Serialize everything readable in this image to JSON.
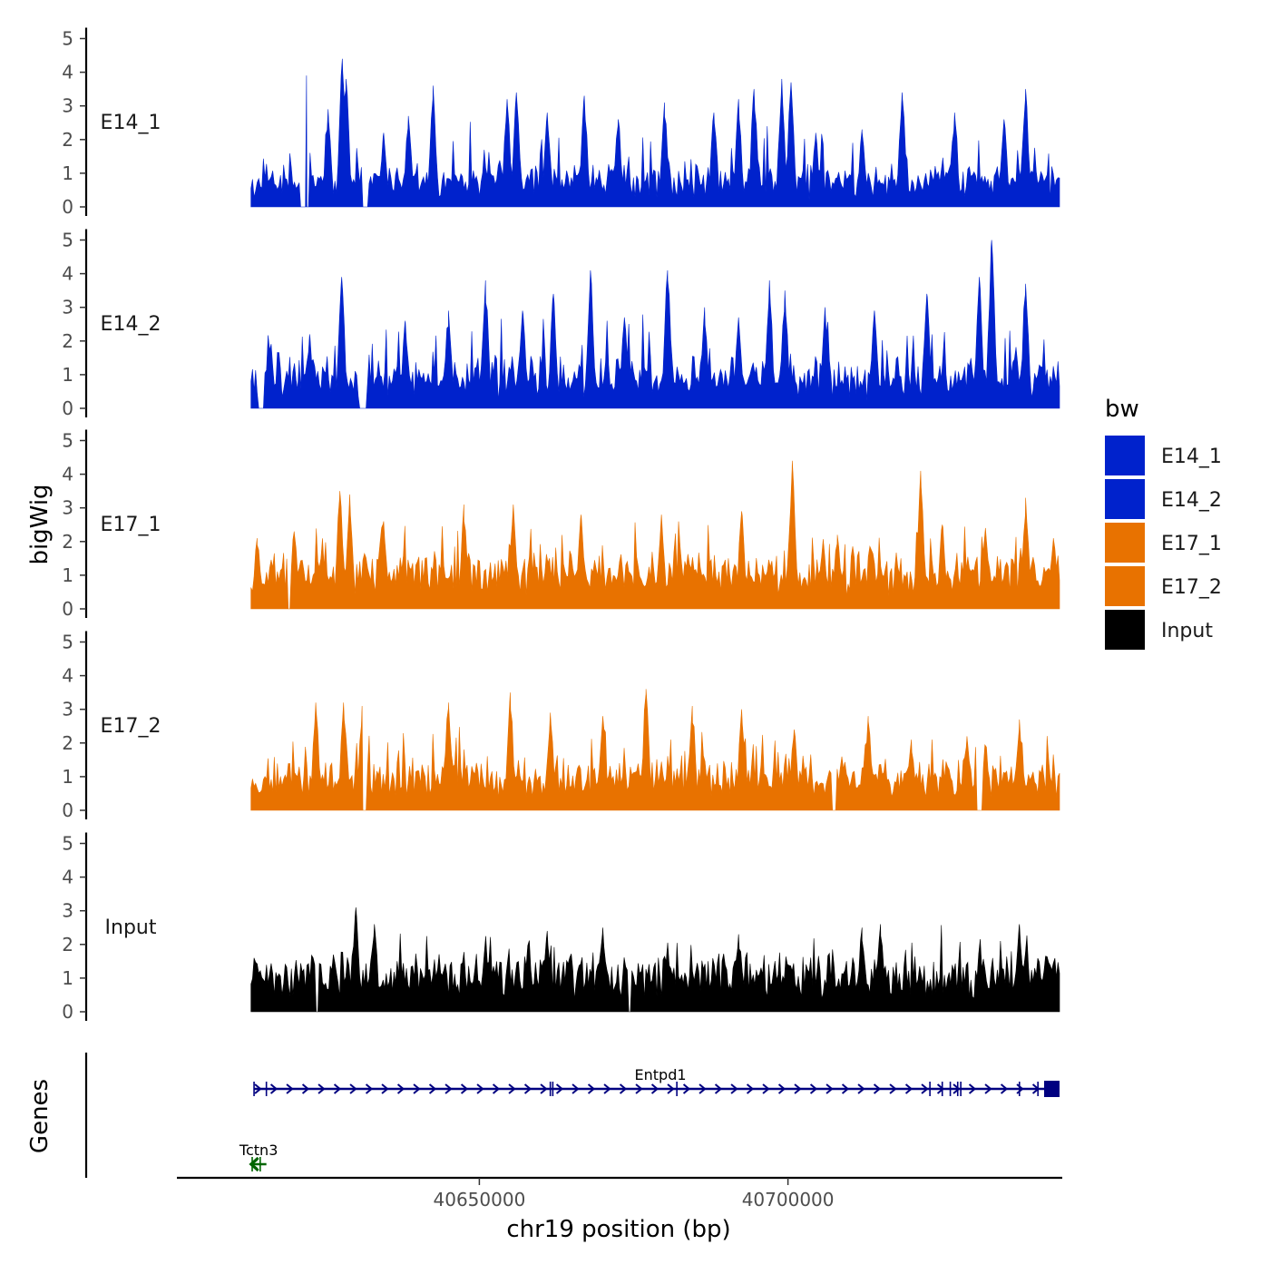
{
  "chart_data": {
    "type": "area",
    "chromosome": "chr19",
    "xlabel": "chr19 position (bp)",
    "ylabel_tracks": "bigWig",
    "ylabel_genes": "Genes",
    "xlim": [
      40601000,
      40744000
    ],
    "data_range": [
      40613000,
      40744000
    ],
    "x_ticks": [
      40650000,
      40700000
    ],
    "x_tick_labels": [
      "40650000",
      "40700000"
    ],
    "ylim": [
      0,
      5
    ],
    "y_ticks": [
      0,
      1,
      2,
      3,
      4,
      5
    ],
    "y_tick_labels": [
      "0",
      "1",
      "2",
      "3",
      "4",
      "5"
    ],
    "legend": {
      "title": "bw",
      "entries": [
        {
          "label": "E14_1",
          "color": "#0022CC"
        },
        {
          "label": "E14_2",
          "color": "#0022CC"
        },
        {
          "label": "E17_1",
          "color": "#E87200"
        },
        {
          "label": "E17_2",
          "color": "#E87200"
        },
        {
          "label": "Input",
          "color": "#000000"
        }
      ]
    },
    "series": [
      {
        "name": "E14_1",
        "color": "#0022CC",
        "seed": 11,
        "base": 0.5,
        "noise": 1.2,
        "gaps": [
          [
            40621000,
            40622500
          ],
          [
            40631000,
            40632000
          ]
        ],
        "peaks": [
          {
            "x": 40622000,
            "y": 3.9
          },
          {
            "x": 40625500,
            "y": 2.9
          },
          {
            "x": 40627800,
            "y": 4.4
          },
          {
            "x": 40628400,
            "y": 3.8
          },
          {
            "x": 40634500,
            "y": 2.2
          },
          {
            "x": 40638500,
            "y": 2.7
          },
          {
            "x": 40642500,
            "y": 3.6
          },
          {
            "x": 40654500,
            "y": 3.2
          },
          {
            "x": 40656000,
            "y": 3.4
          },
          {
            "x": 40661000,
            "y": 2.8
          },
          {
            "x": 40667000,
            "y": 3.3
          },
          {
            "x": 40672500,
            "y": 2.6
          },
          {
            "x": 40680000,
            "y": 3.1
          },
          {
            "x": 40688000,
            "y": 2.8
          },
          {
            "x": 40692000,
            "y": 3.2
          },
          {
            "x": 40694500,
            "y": 3.5
          },
          {
            "x": 40699000,
            "y": 3.8
          },
          {
            "x": 40700500,
            "y": 3.7
          },
          {
            "x": 40704500,
            "y": 2.2
          },
          {
            "x": 40712000,
            "y": 2.3
          },
          {
            "x": 40718500,
            "y": 3.4
          },
          {
            "x": 40727000,
            "y": 2.8
          },
          {
            "x": 40735000,
            "y": 2.6
          },
          {
            "x": 40738500,
            "y": 3.5
          }
        ]
      },
      {
        "name": "E14_2",
        "color": "#0022CC",
        "seed": 23,
        "base": 0.6,
        "noise": 1.3,
        "gaps": [
          [
            40614200,
            40615200
          ],
          [
            40630500,
            40631700
          ]
        ],
        "peaks": [
          {
            "x": 40622500,
            "y": 2.2
          },
          {
            "x": 40627700,
            "y": 3.9
          },
          {
            "x": 40638000,
            "y": 2.6
          },
          {
            "x": 40645000,
            "y": 2.9
          },
          {
            "x": 40651000,
            "y": 3.8
          },
          {
            "x": 40657000,
            "y": 2.9
          },
          {
            "x": 40662000,
            "y": 3.4
          },
          {
            "x": 40668000,
            "y": 4.1
          },
          {
            "x": 40673500,
            "y": 2.7
          },
          {
            "x": 40680500,
            "y": 4.1
          },
          {
            "x": 40686500,
            "y": 3.0
          },
          {
            "x": 40692000,
            "y": 2.7
          },
          {
            "x": 40697000,
            "y": 3.8
          },
          {
            "x": 40699500,
            "y": 3.5
          },
          {
            "x": 40706000,
            "y": 3.0
          },
          {
            "x": 40714000,
            "y": 2.9
          },
          {
            "x": 40722500,
            "y": 3.4
          },
          {
            "x": 40731000,
            "y": 3.9
          },
          {
            "x": 40733000,
            "y": 5.0
          },
          {
            "x": 40738500,
            "y": 3.7
          }
        ]
      },
      {
        "name": "E17_1",
        "color": "#E87200",
        "seed": 37,
        "base": 0.9,
        "noise": 1.0,
        "gaps": [
          [
            40618800,
            40619300
          ]
        ],
        "peaks": [
          {
            "x": 40614000,
            "y": 2.1
          },
          {
            "x": 40620000,
            "y": 2.3
          },
          {
            "x": 40627400,
            "y": 3.5
          },
          {
            "x": 40629000,
            "y": 3.4
          },
          {
            "x": 40634500,
            "y": 2.6
          },
          {
            "x": 40647500,
            "y": 3.1
          },
          {
            "x": 40655500,
            "y": 3.1
          },
          {
            "x": 40666500,
            "y": 2.8
          },
          {
            "x": 40679500,
            "y": 2.8
          },
          {
            "x": 40692500,
            "y": 2.9
          },
          {
            "x": 40700700,
            "y": 4.4
          },
          {
            "x": 40708000,
            "y": 2.2
          },
          {
            "x": 40721500,
            "y": 4.1
          },
          {
            "x": 40725000,
            "y": 2.5
          },
          {
            "x": 40732000,
            "y": 2.4
          },
          {
            "x": 40738500,
            "y": 3.3
          },
          {
            "x": 40743000,
            "y": 2.1
          }
        ]
      },
      {
        "name": "E17_2",
        "color": "#E87200",
        "seed": 53,
        "base": 0.8,
        "noise": 1.0,
        "gaps": [
          [
            40631000,
            40631800
          ],
          [
            40707000,
            40707800
          ],
          [
            40730500,
            40731500
          ]
        ],
        "peaks": [
          {
            "x": 40623500,
            "y": 3.2
          },
          {
            "x": 40628000,
            "y": 3.2
          },
          {
            "x": 40631000,
            "y": 3.1
          },
          {
            "x": 40645000,
            "y": 3.2
          },
          {
            "x": 40655000,
            "y": 3.5
          },
          {
            "x": 40661500,
            "y": 2.9
          },
          {
            "x": 40670000,
            "y": 2.8
          },
          {
            "x": 40677000,
            "y": 3.6
          },
          {
            "x": 40684500,
            "y": 3.1
          },
          {
            "x": 40692500,
            "y": 3.0
          },
          {
            "x": 40701000,
            "y": 2.4
          },
          {
            "x": 40713000,
            "y": 2.8
          },
          {
            "x": 40720000,
            "y": 2.1
          },
          {
            "x": 40729000,
            "y": 2.2
          },
          {
            "x": 40737500,
            "y": 2.7
          }
        ]
      },
      {
        "name": "Input",
        "color": "#000000",
        "seed": 71,
        "base": 1.0,
        "noise": 0.8,
        "gaps": [
          [
            40623500,
            40624000
          ],
          [
            40674000,
            40674600
          ]
        ],
        "peaks": [
          {
            "x": 40630000,
            "y": 3.1
          },
          {
            "x": 40633000,
            "y": 2.6
          },
          {
            "x": 40661000,
            "y": 2.4
          },
          {
            "x": 40670000,
            "y": 2.5
          },
          {
            "x": 40692000,
            "y": 2.3
          },
          {
            "x": 40712000,
            "y": 2.5
          },
          {
            "x": 40715000,
            "y": 2.6
          },
          {
            "x": 40737500,
            "y": 2.6
          }
        ]
      }
    ],
    "genes": [
      {
        "name": "Entpd1",
        "start": 40613500,
        "end": 40744000,
        "strand": "+",
        "color": "#000080",
        "row": 0,
        "exons": [
          40613500,
          40615500,
          40661500,
          40661900,
          40682000,
          40723000,
          40725000,
          40726300,
          40727500,
          40728000,
          40737500,
          40740500
        ],
        "end_block": [
          40741500,
          40744000
        ]
      },
      {
        "name": "Tctn3",
        "start": 40613000,
        "end": 40615500,
        "strand": "-",
        "color": "#006400",
        "row": 1,
        "exons": [
          40613200,
          40614500
        ],
        "end_block": null
      }
    ]
  }
}
